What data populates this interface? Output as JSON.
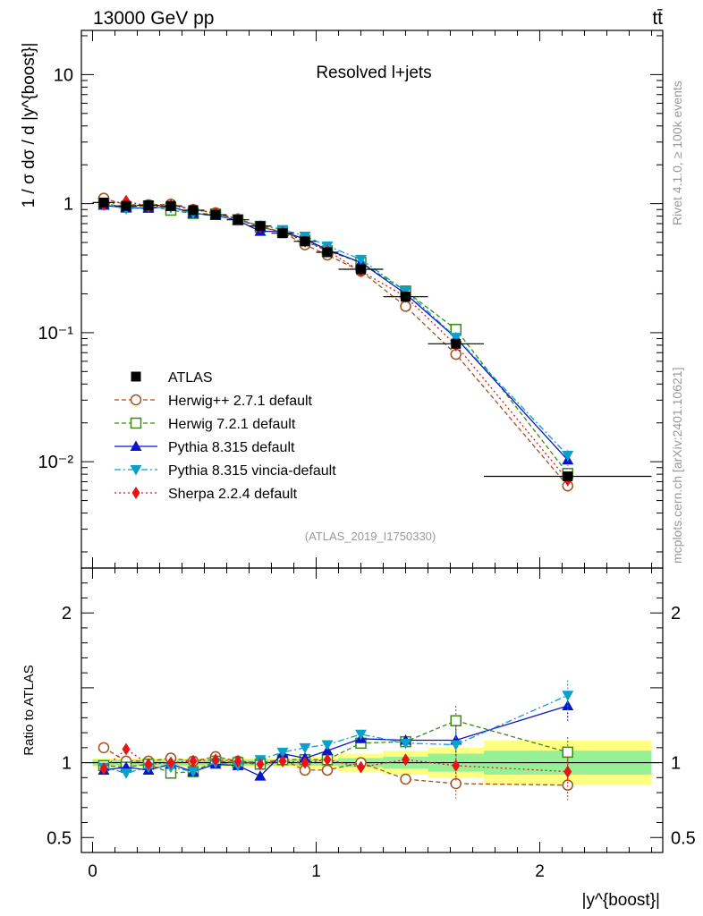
{
  "header": {
    "left_label": "13000 GeV pp",
    "right_label": "tt̄",
    "plot_title": "Resolved l+jets",
    "analysis_tag": "(ATLAS_2019_I1750330)",
    "side_label_top": "Rivet 4.1.0, ≥ 100k events",
    "side_label_bottom": "mcplots.cern.ch [arXiv:2401.10621]"
  },
  "chart_data": [
    {
      "type": "line",
      "panel": "main",
      "ylabel": "1 / σ dσ / d |y^{boost}|",
      "yscale": "log",
      "ylim": [
        0.0015,
        22
      ],
      "xlim": [
        -0.05,
        2.55
      ],
      "y_ticks": [
        {
          "v": 10,
          "label": "10"
        },
        {
          "v": 1,
          "label": "1"
        },
        {
          "v": 0.1,
          "label": "10⁻¹"
        },
        {
          "v": 0.01,
          "label": "10⁻²"
        }
      ],
      "x": [
        0.05,
        0.15,
        0.25,
        0.35,
        0.45,
        0.55,
        0.65,
        0.75,
        0.85,
        0.95,
        1.05,
        1.2,
        1.4,
        1.625,
        2.125
      ],
      "x_bins": [
        [
          0.0,
          0.1
        ],
        [
          0.1,
          0.2
        ],
        [
          0.2,
          0.3
        ],
        [
          0.3,
          0.4
        ],
        [
          0.4,
          0.5
        ],
        [
          0.5,
          0.6
        ],
        [
          0.6,
          0.7
        ],
        [
          0.7,
          0.8
        ],
        [
          0.8,
          0.9
        ],
        [
          0.9,
          1.0
        ],
        [
          1.0,
          1.1
        ],
        [
          1.1,
          1.3
        ],
        [
          1.3,
          1.5
        ],
        [
          1.5,
          1.75
        ],
        [
          1.75,
          2.5
        ]
      ],
      "series": [
        {
          "name": "ATLAS",
          "style": "data",
          "color": "#000000",
          "marker": "square-filled",
          "values": [
            1.02,
            0.96,
            0.97,
            0.96,
            0.89,
            0.82,
            0.75,
            0.67,
            0.59,
            0.51,
            0.42,
            0.31,
            0.19,
            0.082,
            0.0077
          ]
        },
        {
          "name": "Herwig++ 2.7.1 default",
          "style": "mc",
          "color": "#a0521e",
          "marker": "circle-open",
          "dash": "5,3",
          "values": [
            1.1,
            0.98,
            0.98,
            0.99,
            0.9,
            0.85,
            0.76,
            0.67,
            0.6,
            0.48,
            0.4,
            0.3,
            0.16,
            0.068,
            0.0065
          ]
        },
        {
          "name": "Herwig 7.2.1 default",
          "style": "mc",
          "color": "#3b8a14",
          "marker": "square-open",
          "dash": "5,3",
          "values": [
            1.0,
            0.94,
            0.96,
            0.89,
            0.84,
            0.83,
            0.75,
            0.66,
            0.6,
            0.52,
            0.43,
            0.35,
            0.21,
            0.106,
            0.0081
          ]
        },
        {
          "name": "Pythia 8.315 default",
          "style": "mc",
          "color": "#0a14c8",
          "marker": "triangle-up",
          "dash": "",
          "values": [
            0.97,
            0.93,
            0.92,
            0.95,
            0.84,
            0.81,
            0.74,
            0.61,
            0.61,
            0.53,
            0.44,
            0.35,
            0.2,
            0.091,
            0.0103
          ]
        },
        {
          "name": "Pythia 8.315 vincia-default",
          "style": "mc",
          "color": "#0aa0cc",
          "marker": "triangle-down",
          "dash": "7,3,2,3",
          "values": [
            0.99,
            0.91,
            0.94,
            0.93,
            0.84,
            0.82,
            0.74,
            0.68,
            0.63,
            0.56,
            0.47,
            0.37,
            0.21,
            0.092,
            0.0112
          ]
        },
        {
          "name": "Sherpa 2.2.4 default",
          "style": "mc",
          "color": "#e61414",
          "marker": "diamond",
          "dash": "2,3",
          "values": [
            0.98,
            1.05,
            0.95,
            0.97,
            0.9,
            0.84,
            0.76,
            0.66,
            0.6,
            0.51,
            0.43,
            0.3,
            0.19,
            0.08,
            0.0072
          ]
        }
      ]
    },
    {
      "type": "line",
      "panel": "ratio",
      "ylabel": "Ratio to ATLAS",
      "xlabel": "|y^{boost}|",
      "ylim": [
        0.4,
        2.3
      ],
      "xlim": [
        -0.05,
        2.55
      ],
      "y_ticks": [
        {
          "v": 2,
          "label": "2"
        },
        {
          "v": 1,
          "label": "1"
        },
        {
          "v": 0.5,
          "label": "0.5"
        }
      ],
      "x_ticks": [
        {
          "v": 0,
          "label": "0"
        },
        {
          "v": 1,
          "label": "1"
        },
        {
          "v": 2,
          "label": "2"
        }
      ],
      "band_inner": [
        0.02,
        0.02,
        0.02,
        0.02,
        0.02,
        0.02,
        0.02,
        0.02,
        0.02,
        0.02,
        0.02,
        0.03,
        0.04,
        0.06,
        0.08
      ],
      "band_outer": [
        0.03,
        0.03,
        0.03,
        0.03,
        0.03,
        0.03,
        0.03,
        0.03,
        0.03,
        0.04,
        0.04,
        0.06,
        0.08,
        0.1,
        0.15
      ],
      "series": [
        {
          "name": "Herwig++ 2.7.1 default",
          "color": "#a0521e",
          "marker": "circle-open",
          "dash": "5,3",
          "values": [
            1.1,
            1.01,
            1.01,
            1.03,
            1.01,
            1.04,
            1.01,
            1.0,
            1.02,
            0.95,
            0.95,
            1.0,
            0.89,
            0.86,
            0.85
          ]
        },
        {
          "name": "Herwig 7.2.1 default",
          "color": "#3b8a14",
          "marker": "square-open",
          "dash": "5,3",
          "values": [
            0.98,
            0.97,
            0.99,
            0.93,
            0.94,
            1.01,
            1.0,
            0.99,
            1.02,
            1.02,
            1.02,
            1.13,
            1.14,
            1.28,
            1.07
          ]
        },
        {
          "name": "Pythia 8.315 default",
          "color": "#0a14c8",
          "marker": "triangle-up",
          "dash": "",
          "values": [
            0.95,
            0.97,
            0.95,
            0.99,
            0.94,
            0.99,
            0.98,
            0.91,
            1.06,
            1.03,
            1.08,
            1.16,
            1.15,
            1.15,
            1.38
          ]
        },
        {
          "name": "Pythia 8.315 vincia-default",
          "color": "#0aa0cc",
          "marker": "triangle-down",
          "dash": "7,3,2,3",
          "values": [
            0.97,
            0.93,
            0.97,
            0.97,
            0.94,
            1.0,
            0.98,
            1.02,
            1.07,
            1.1,
            1.12,
            1.19,
            1.13,
            1.12,
            1.45
          ]
        },
        {
          "name": "Sherpa 2.2.4 default",
          "color": "#e61414",
          "marker": "diamond",
          "dash": "2,3",
          "values": [
            0.96,
            1.09,
            0.99,
            1.0,
            1.01,
            1.02,
            1.01,
            0.99,
            1.01,
            1.0,
            1.02,
            0.97,
            1.02,
            0.98,
            0.94
          ]
        }
      ]
    }
  ]
}
